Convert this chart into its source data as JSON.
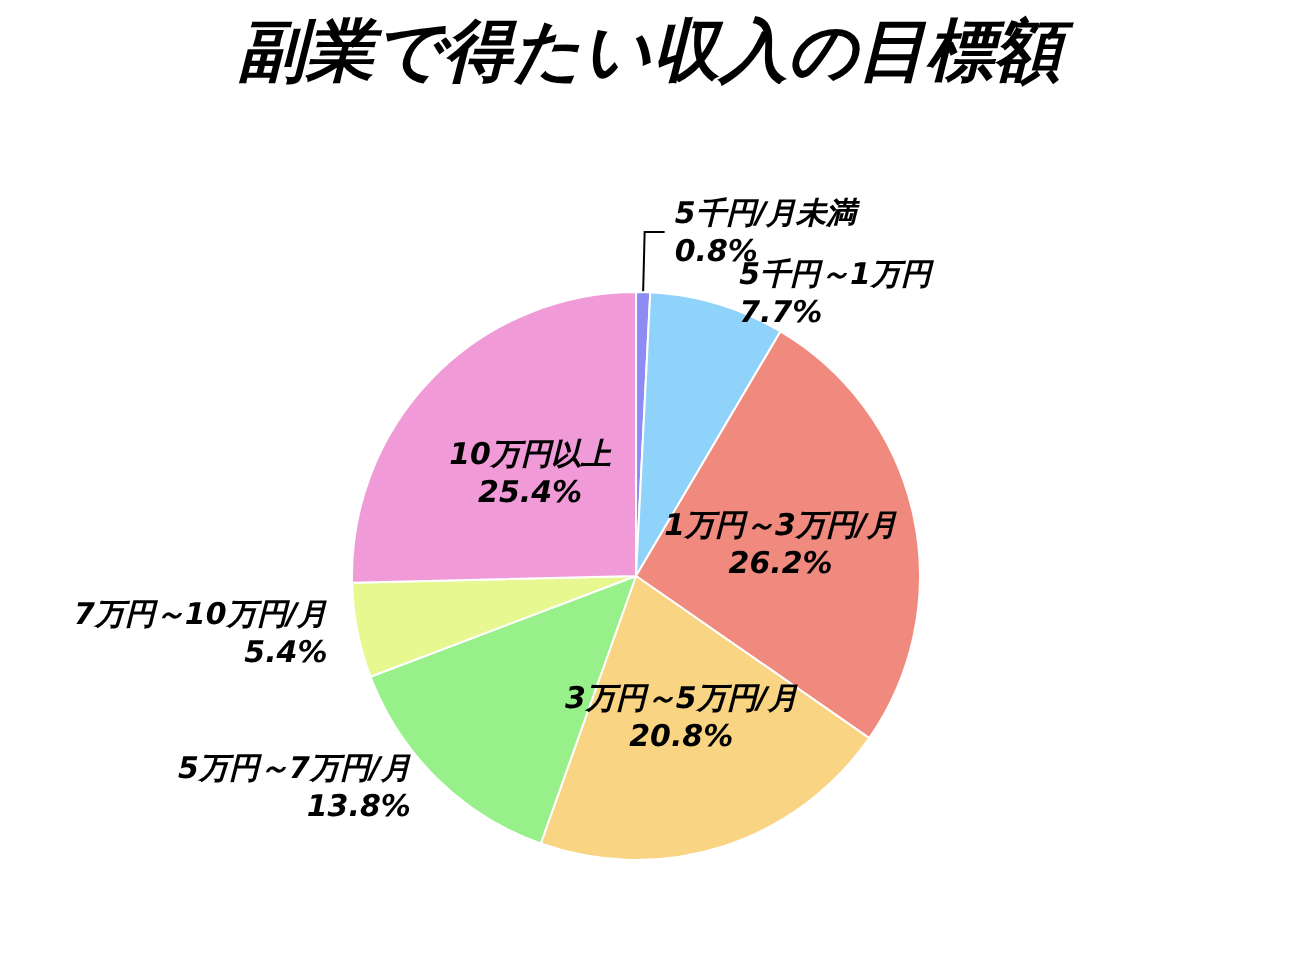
{
  "chart_data": {
    "type": "pie",
    "title": "副業で得たい収入の目標額",
    "categories": [
      "5千円/月未満",
      "5千円～1万円",
      "1万円～3万円/月",
      "3万円～5万円/月",
      "5万円～7万円/月",
      "7万円～10万円/月",
      "10万円以上"
    ],
    "values": [
      0.8,
      7.7,
      26.2,
      20.8,
      13.8,
      5.4,
      25.4
    ],
    "value_labels": [
      "0.8%",
      "7.7%",
      "26.2%",
      "20.8%",
      "13.8%",
      "5.4%",
      "25.4%"
    ],
    "colors": [
      "#8c8cf2",
      "#8fd3fa",
      "#f08a7e",
      "#f8d483",
      "#98f08a",
      "#e8f890",
      "#f09ad8"
    ]
  }
}
